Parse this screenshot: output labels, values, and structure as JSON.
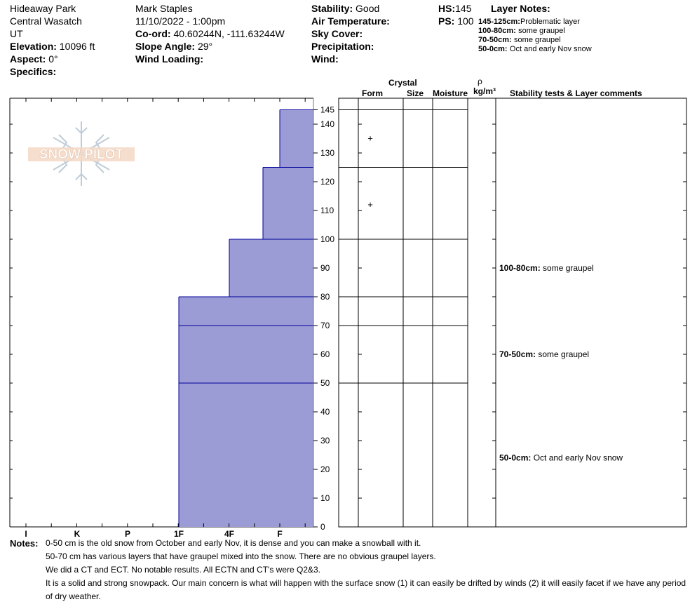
{
  "header": {
    "location": "Hideaway Park",
    "range": "Central Wasatch",
    "state": "UT",
    "elevation_label": "Elevation:",
    "elevation_value": "10096 ft",
    "aspect_label": "Aspect:",
    "aspect_value": "0°",
    "specifics_label": "Specifics:",
    "observer": "Mark Staples",
    "datetime": "11/10/2022 - 1:00pm",
    "coord_label": "Co-ord:",
    "coord_value": "40.60244N, -111.63244W",
    "slope_label": "Slope Angle:",
    "slope_value": "29°",
    "wind_loading_label": "Wind Loading:",
    "stability_label": "Stability:",
    "stability_value": "Good",
    "air_temp_label": "Air Temperature:",
    "sky_label": "Sky Cover:",
    "precip_label": "Precipitation:",
    "wind_label": "Wind:",
    "hs_label": "HS:",
    "hs_value": "145",
    "ps_label": "PS:",
    "ps_value": "100"
  },
  "layer_notes": {
    "title": "Layer Notes:",
    "items": [
      {
        "range": "145-125cm:",
        "text": "Problematic layer"
      },
      {
        "range": "100-80cm:",
        "text": "some graupel"
      },
      {
        "range": "70-50cm:",
        "text": "some graupel"
      },
      {
        "range": "50-0cm:",
        "text": "Oct and early Nov snow"
      }
    ]
  },
  "logo_text": "SNOW PILOT",
  "columns": {
    "crystal": "Crystal",
    "form": "Form",
    "size": "Size",
    "moisture": "Moisture",
    "rho": "ρ",
    "density_unit": "kg/m³",
    "stability": "Stability tests & Layer comments"
  },
  "comments": [
    {
      "range": "100-80cm:",
      "text": "some graupel",
      "depth": 90
    },
    {
      "range": "70-50cm:",
      "text": "some graupel",
      "depth": 60
    },
    {
      "range": "50-0cm:",
      "text": "Oct and early Nov snow",
      "depth": 24
    }
  ],
  "form_marks": [
    {
      "symbol": "+",
      "depth": 135
    },
    {
      "symbol": "+",
      "depth": 112
    }
  ],
  "chart_data": {
    "type": "bar",
    "orientation": "horizontal-step",
    "ylabel": "",
    "xlabel": "",
    "ylim": [
      0,
      145
    ],
    "y_ticks": [
      0,
      10,
      20,
      30,
      40,
      50,
      60,
      70,
      80,
      90,
      100,
      110,
      120,
      130,
      140,
      145
    ],
    "hardness_ticks": [
      "I",
      "K",
      "P",
      "1F",
      "4F",
      "F"
    ],
    "layers": [
      {
        "top": 145,
        "bottom": 125,
        "hardness": "F"
      },
      {
        "top": 125,
        "bottom": 100,
        "hardness": "F+"
      },
      {
        "top": 100,
        "bottom": 80,
        "hardness": "4F"
      },
      {
        "top": 80,
        "bottom": 70,
        "hardness": "1F"
      },
      {
        "top": 70,
        "bottom": 50,
        "hardness": "1F"
      },
      {
        "top": 50,
        "bottom": 0,
        "hardness": "1F"
      }
    ],
    "layer_boundaries": [
      145,
      125,
      100,
      80,
      70,
      50
    ],
    "fill_color": "#9b9bd6",
    "edge_color": "#00009a"
  },
  "notes": {
    "label": "Notes:",
    "lines": [
      "0-50 cm is the old snow from October and early Nov, it is dense and you can make a snowball with it.",
      "50-70 cm has various layers that have graupel mixed into the snow. There are no obvious graupel layers.",
      "We did a CT and ECT. No notable results. All ECTN and CT's were Q2&3.",
      "It is a solid and strong snowpack. Our main concern is what will happen with the surface snow (1) it can easily be drifted by winds (2) it will easily facet if we have any period",
      "of dry weather."
    ]
  }
}
